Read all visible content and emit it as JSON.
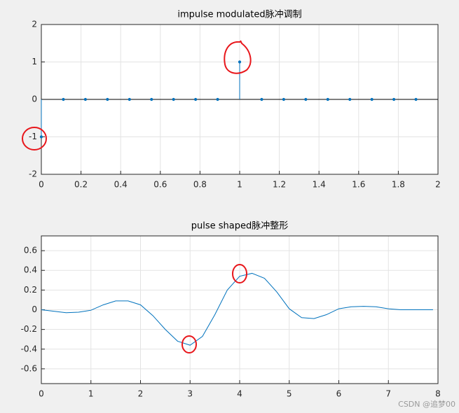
{
  "chart_data": [
    {
      "type": "stem",
      "title": "impulse modulated脉冲调制",
      "color": "#0072bd",
      "grid": true,
      "x": [
        0,
        0.1111,
        0.2222,
        0.3333,
        0.4444,
        0.5556,
        0.6667,
        0.7778,
        0.8889,
        1,
        1.1111,
        1.2222,
        1.3333,
        1.4444,
        1.5556,
        1.6667,
        1.7778,
        1.8889
      ],
      "values": [
        -1,
        0,
        0,
        0,
        0,
        0,
        0,
        0,
        0,
        1,
        0,
        0,
        0,
        0,
        0,
        0,
        0,
        0
      ],
      "xlim": [
        0,
        2
      ],
      "xticks": [
        0,
        0.2,
        0.4,
        0.6,
        0.8,
        1,
        1.2,
        1.4,
        1.6,
        1.8,
        2
      ],
      "ylim": [
        -2,
        2
      ],
      "yticks": [
        -2,
        -1,
        0,
        1,
        2
      ]
    },
    {
      "type": "line",
      "title": "pulse shaped脉冲整形",
      "color": "#0072bd",
      "grid": true,
      "x": [
        0,
        0.25,
        0.5,
        0.75,
        1,
        1.25,
        1.5,
        1.75,
        2,
        2.25,
        2.5,
        2.75,
        3,
        3.25,
        3.5,
        3.75,
        4,
        4.25,
        4.5,
        4.75,
        5,
        5.25,
        5.5,
        5.75,
        6,
        6.25,
        6.5,
        6.75,
        7,
        7.25,
        7.5,
        7.75,
        7.9
      ],
      "values": [
        0,
        -0.015,
        -0.03,
        -0.025,
        -0.005,
        0.05,
        0.09,
        0.09,
        0.05,
        -0.06,
        -0.2,
        -0.32,
        -0.36,
        -0.27,
        -0.05,
        0.2,
        0.34,
        0.37,
        0.32,
        0.18,
        0.01,
        -0.08,
        -0.09,
        -0.05,
        0.01,
        0.03,
        0.035,
        0.03,
        0.01,
        0,
        0,
        0,
        0
      ],
      "xlim": [
        0,
        8
      ],
      "xticks": [
        0,
        1,
        2,
        3,
        4,
        5,
        6,
        7,
        8
      ],
      "ylim": [
        -0.75,
        0.75
      ],
      "yticks": [
        -0.6,
        -0.4,
        -0.2,
        0,
        0.2,
        0.4,
        0.6
      ]
    }
  ],
  "watermark": "CSDN @追梦00"
}
